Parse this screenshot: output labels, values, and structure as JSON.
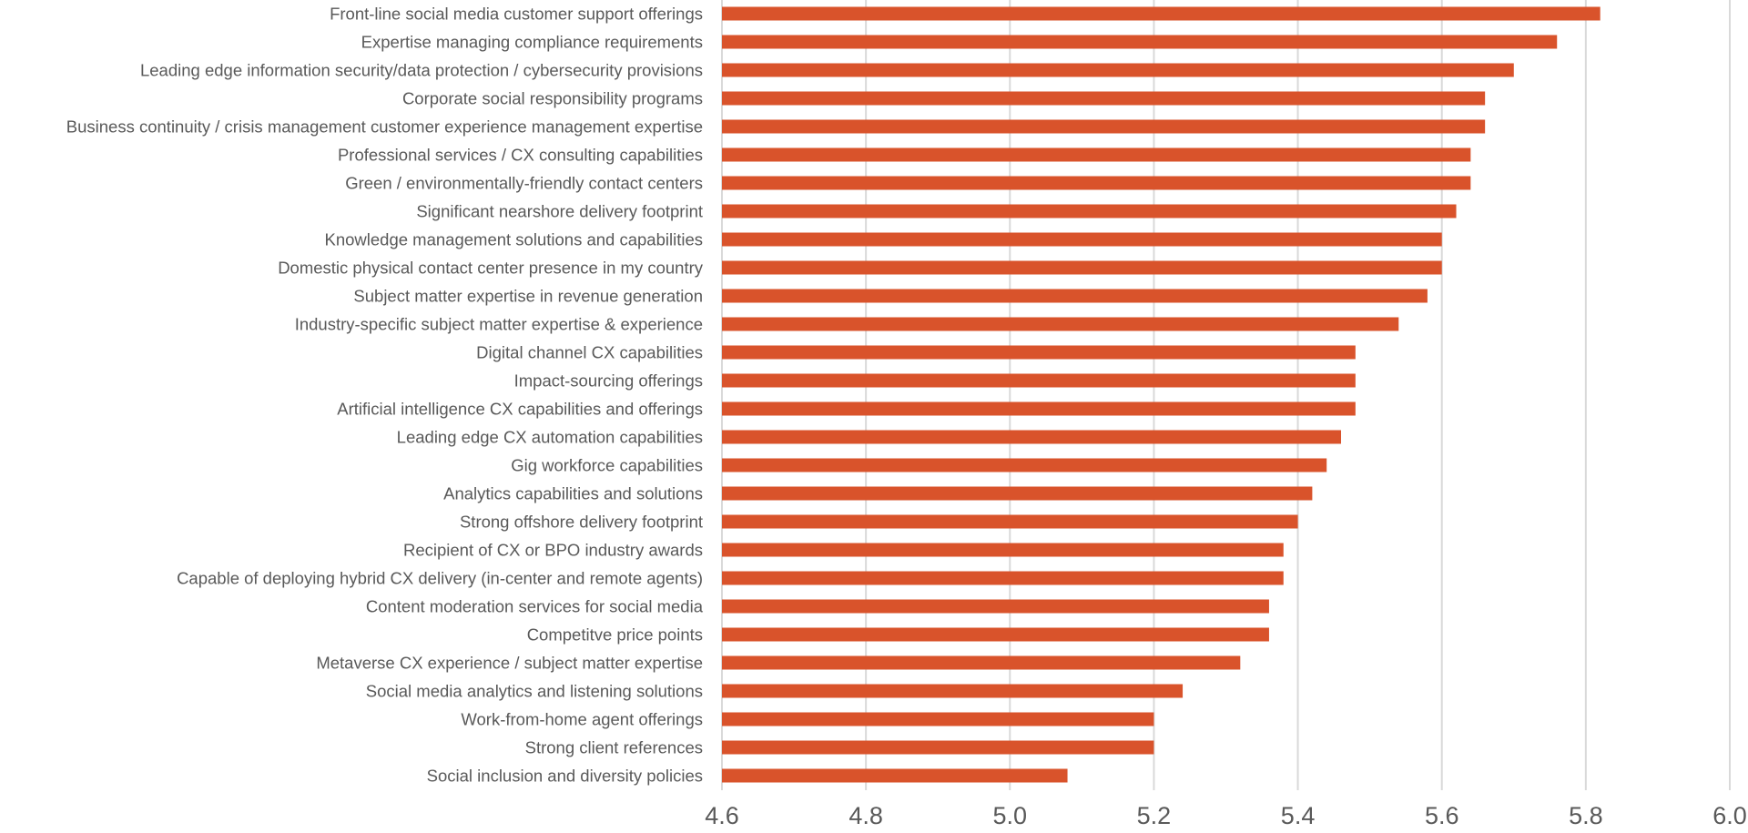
{
  "chart_data": {
    "type": "bar",
    "orientation": "horizontal",
    "title": "",
    "xlabel": "",
    "ylabel": "",
    "xlim": [
      4.6,
      6.0
    ],
    "ticks": [
      "4.6",
      "4.8",
      "5.0",
      "5.2",
      "5.4",
      "5.6",
      "5.8",
      "6.0"
    ],
    "grid": true,
    "bar_color": "#D9532B",
    "categories": [
      "Front-line social media customer support offerings",
      "Expertise managing compliance requirements",
      "Leading edge information security/data protection / cybersecurity provisions",
      "Corporate social responsibility programs",
      "Business continuity / crisis management customer experience management expertise",
      "Professional services / CX consulting capabilities",
      "Green / environmentally-friendly contact centers",
      "Significant nearshore delivery footprint",
      "Knowledge management solutions and capabilities",
      "Domestic physical contact center presence in my country",
      "Subject matter expertise in revenue generation",
      "Industry-specific subject matter expertise & experience",
      "Digital channel CX capabilities",
      "Impact-sourcing offerings",
      "Artificial intelligence CX capabilities and offerings",
      "Leading edge CX automation capabilities",
      "Gig workforce capabilities",
      "Analytics capabilities and solutions",
      "Strong offshore delivery footprint",
      "Recipient of CX or BPO industry awards",
      "Capable of deploying hybrid CX delivery (in-center and remote agents)",
      "Content moderation services for social media",
      "Competitve price points",
      "Metaverse CX experience / subject matter expertise",
      "Social media analytics and listening solutions",
      "Work-from-home agent offerings",
      "Strong client references",
      "Social inclusion and diversity policies"
    ],
    "values": [
      5.82,
      5.76,
      5.7,
      5.66,
      5.66,
      5.64,
      5.64,
      5.62,
      5.6,
      5.6,
      5.58,
      5.54,
      5.48,
      5.48,
      5.48,
      5.46,
      5.44,
      5.42,
      5.4,
      5.38,
      5.38,
      5.36,
      5.36,
      5.32,
      5.24,
      5.2,
      5.2,
      5.08
    ]
  }
}
